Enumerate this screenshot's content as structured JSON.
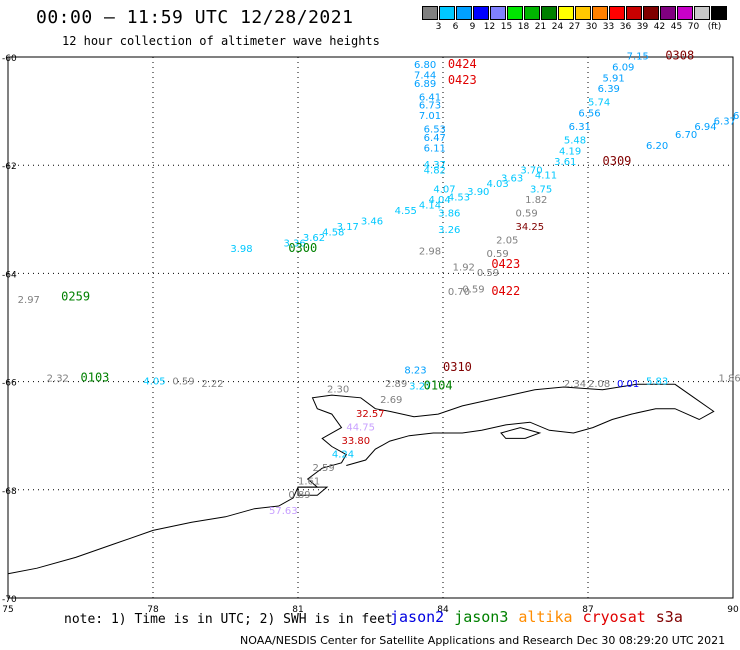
{
  "header": {
    "title": "00:00 – 11:59 UTC 12/28/2021",
    "subtitle": "12 hour collection of altimeter wave heights"
  },
  "colorbar": {
    "colors": [
      "#808080",
      "#00c8ff",
      "#00a0ff",
      "#0000ff",
      "#8080ff",
      "#00e600",
      "#00b400",
      "#008000",
      "#ffff00",
      "#ffc800",
      "#ff8000",
      "#ff0000",
      "#c80000",
      "#800000",
      "#800080",
      "#c800c8",
      "#c8c8c8",
      "#000000"
    ],
    "labels": [
      "3",
      "6",
      "9",
      "12",
      "15",
      "18",
      "21",
      "24",
      "27",
      "30",
      "33",
      "36",
      "39",
      "42",
      "45",
      "70",
      "(ft)"
    ]
  },
  "axes": {
    "lat_labels": [
      "-60",
      "-62",
      "-64",
      "-66",
      "-68",
      "-70"
    ],
    "lon_labels": [
      "75",
      "78",
      "81",
      "84",
      "87",
      "90"
    ]
  },
  "passes": [
    {
      "text": "0424",
      "lon": 84.1,
      "lat": -60.2,
      "color": "#e00000"
    },
    {
      "text": "0423",
      "lon": 84.1,
      "lat": -60.5,
      "color": "#e00000"
    },
    {
      "text": "0308",
      "lon": 88.6,
      "lat": -60.05,
      "color": "#800000"
    },
    {
      "text": "0300",
      "lon": 80.8,
      "lat": -63.6,
      "color": "#008000"
    },
    {
      "text": "0259",
      "lon": 76.1,
      "lat": -64.5,
      "color": "#008000"
    },
    {
      "text": "0309",
      "lon": 87.3,
      "lat": -62.0,
      "color": "#800000"
    },
    {
      "text": "0423",
      "lon": 85.0,
      "lat": -63.9,
      "color": "#e00000"
    },
    {
      "text": "0422",
      "lon": 85.0,
      "lat": -64.4,
      "color": "#e00000"
    },
    {
      "text": "0310",
      "lon": 84.0,
      "lat": -65.8,
      "color": "#800000"
    },
    {
      "text": "0103",
      "lon": 76.5,
      "lat": -66.0,
      "color": "#008000"
    },
    {
      "text": "0104",
      "lon": 83.6,
      "lat": -66.15,
      "color": "#008000"
    }
  ],
  "values": [
    {
      "text": "6.80",
      "lon": 83.4,
      "lat": -60.2,
      "color": "#00a0ff"
    },
    {
      "text": "7.44",
      "lon": 83.4,
      "lat": -60.4,
      "color": "#00a0ff"
    },
    {
      "text": "6.89",
      "lon": 83.4,
      "lat": -60.55,
      "color": "#00a0ff"
    },
    {
      "text": "6.41",
      "lon": 83.5,
      "lat": -60.8,
      "color": "#00a0ff"
    },
    {
      "text": "6.73",
      "lon": 83.5,
      "lat": -60.95,
      "color": "#00a0ff"
    },
    {
      "text": "7.01",
      "lon": 83.5,
      "lat": -61.15,
      "color": "#00a0ff"
    },
    {
      "text": "6.53",
      "lon": 83.6,
      "lat": -61.4,
      "color": "#00a0ff"
    },
    {
      "text": "6.47",
      "lon": 83.6,
      "lat": -61.55,
      "color": "#00a0ff"
    },
    {
      "text": "6.11",
      "lon": 83.6,
      "lat": -61.75,
      "color": "#00a0ff"
    },
    {
      "text": "4.37",
      "lon": 83.6,
      "lat": -62.05,
      "color": "#00c8ff"
    },
    {
      "text": "4.82",
      "lon": 83.6,
      "lat": -62.15,
      "color": "#00c8ff"
    },
    {
      "text": "4.07",
      "lon": 83.8,
      "lat": -62.5,
      "color": "#00c8ff"
    },
    {
      "text": "4.04",
      "lon": 83.7,
      "lat": -62.7,
      "color": "#00c8ff"
    },
    {
      "text": "3.86",
      "lon": 83.9,
      "lat": -62.95,
      "color": "#00c8ff"
    },
    {
      "text": "3.26",
      "lon": 83.9,
      "lat": -63.25,
      "color": "#00c8ff"
    },
    {
      "text": "2.98",
      "lon": 83.5,
      "lat": -63.65,
      "color": "#808080"
    },
    {
      "text": "1.92",
      "lon": 84.2,
      "lat": -63.95,
      "color": "#808080"
    },
    {
      "text": "0.59",
      "lon": 84.7,
      "lat": -64.05,
      "color": "#808080"
    },
    {
      "text": "0.59",
      "lon": 84.4,
      "lat": -64.35,
      "color": "#808080"
    },
    {
      "text": "0.70",
      "lon": 84.1,
      "lat": -64.4,
      "color": "#808080"
    },
    {
      "text": "7.15",
      "lon": 87.8,
      "lat": -60.05,
      "color": "#00a0ff"
    },
    {
      "text": "6.09",
      "lon": 87.5,
      "lat": -60.25,
      "color": "#00a0ff"
    },
    {
      "text": "5.91",
      "lon": 87.3,
      "lat": -60.45,
      "color": "#00a0ff"
    },
    {
      "text": "6.39",
      "lon": 87.2,
      "lat": -60.65,
      "color": "#00a0ff"
    },
    {
      "text": "5.74",
      "lon": 87.0,
      "lat": -60.9,
      "color": "#00c8ff"
    },
    {
      "text": "6.56",
      "lon": 86.8,
      "lat": -61.1,
      "color": "#00a0ff"
    },
    {
      "text": "6.31",
      "lon": 86.6,
      "lat": -61.35,
      "color": "#00a0ff"
    },
    {
      "text": "5.48",
      "lon": 86.5,
      "lat": -61.6,
      "color": "#00c8ff"
    },
    {
      "text": "4.19",
      "lon": 86.4,
      "lat": -61.8,
      "color": "#00c8ff"
    },
    {
      "text": "3.61",
      "lon": 86.3,
      "lat": -62.0,
      "color": "#00c8ff"
    },
    {
      "text": "4.11",
      "lon": 85.9,
      "lat": -62.25,
      "color": "#00c8ff"
    },
    {
      "text": "3.75",
      "lon": 85.8,
      "lat": -62.5,
      "color": "#00c8ff"
    },
    {
      "text": "3.70",
      "lon": 85.6,
      "lat": -62.15,
      "color": "#00c8ff"
    },
    {
      "text": "1.82",
      "lon": 85.7,
      "lat": -62.7,
      "color": "#808080"
    },
    {
      "text": "0.59",
      "lon": 85.5,
      "lat": -62.95,
      "color": "#808080"
    },
    {
      "text": "34.25",
      "lon": 85.5,
      "lat": -63.2,
      "color": "#800000"
    },
    {
      "text": "2.05",
      "lon": 85.1,
      "lat": -63.45,
      "color": "#808080"
    },
    {
      "text": "0.59",
      "lon": 84.9,
      "lat": -63.7,
      "color": "#808080"
    },
    {
      "text": "6.20",
      "lon": 88.2,
      "lat": -61.7,
      "color": "#00a0ff"
    },
    {
      "text": "6.70",
      "lon": 88.8,
      "lat": -61.5,
      "color": "#00a0ff"
    },
    {
      "text": "6.94",
      "lon": 89.2,
      "lat": -61.35,
      "color": "#00a0ff"
    },
    {
      "text": "6.37",
      "lon": 89.6,
      "lat": -61.25,
      "color": "#00a0ff"
    },
    {
      "text": "6.17",
      "lon": 90.0,
      "lat": -61.15,
      "color": "#00a0ff"
    },
    {
      "text": "6.09",
      "lon": 90.5,
      "lat": -60.95,
      "color": "#00a0ff"
    },
    {
      "text": "3.63",
      "lon": 85.2,
      "lat": -62.3,
      "color": "#00c8ff"
    },
    {
      "text": "4.03",
      "lon": 84.9,
      "lat": -62.4,
      "color": "#00c8ff"
    },
    {
      "text": "3.90",
      "lon": 84.5,
      "lat": -62.55,
      "color": "#00c8ff"
    },
    {
      "text": "4.53",
      "lon": 84.1,
      "lat": -62.65,
      "color": "#00c8ff"
    },
    {
      "text": "4.14",
      "lon": 83.5,
      "lat": -62.8,
      "color": "#00c8ff"
    },
    {
      "text": "4.55",
      "lon": 83.0,
      "lat": -62.9,
      "color": "#00c8ff"
    },
    {
      "text": "3.46",
      "lon": 82.3,
      "lat": -63.1,
      "color": "#00c8ff"
    },
    {
      "text": "3.17",
      "lon": 81.8,
      "lat": -63.2,
      "color": "#00c8ff"
    },
    {
      "text": "4.58",
      "lon": 81.5,
      "lat": -63.3,
      "color": "#00c8ff"
    },
    {
      "text": "3.62",
      "lon": 81.1,
      "lat": -63.4,
      "color": "#00c8ff"
    },
    {
      "text": "3.36",
      "lon": 80.7,
      "lat": -63.5,
      "color": "#00c8ff"
    },
    {
      "text": "3.98",
      "lon": 79.6,
      "lat": -63.6,
      "color": "#00c8ff"
    },
    {
      "text": "2.97",
      "lon": 75.2,
      "lat": -64.55,
      "color": "#808080"
    },
    {
      "text": "8.23",
      "lon": 83.2,
      "lat": -65.85,
      "color": "#00a0ff"
    },
    {
      "text": "2.32",
      "lon": 75.8,
      "lat": -66.0,
      "color": "#808080"
    },
    {
      "text": "4.05",
      "lon": 77.8,
      "lat": -66.05,
      "color": "#00c8ff"
    },
    {
      "text": "0.59",
      "lon": 78.4,
      "lat": -66.05,
      "color": "#808080"
    },
    {
      "text": "2.22",
      "lon": 79.0,
      "lat": -66.1,
      "color": "#808080"
    },
    {
      "text": "2.30",
      "lon": 81.6,
      "lat": -66.2,
      "color": "#808080"
    },
    {
      "text": "2.89",
      "lon": 82.8,
      "lat": -66.1,
      "color": "#808080"
    },
    {
      "text": "3.27",
      "lon": 83.3,
      "lat": -66.15,
      "color": "#00c8ff"
    },
    {
      "text": "2.69",
      "lon": 82.7,
      "lat": -66.4,
      "color": "#808080"
    },
    {
      "text": "32.57",
      "lon": 82.2,
      "lat": -66.65,
      "color": "#c80000"
    },
    {
      "text": "44.75",
      "lon": 82.0,
      "lat": -66.9,
      "color": "#c8a0ff"
    },
    {
      "text": "33.80",
      "lon": 81.9,
      "lat": -67.15,
      "color": "#c80000"
    },
    {
      "text": "4.24",
      "lon": 81.7,
      "lat": -67.4,
      "color": "#00c8ff"
    },
    {
      "text": "2.59",
      "lon": 81.3,
      "lat": -67.65,
      "color": "#808080"
    },
    {
      "text": "1.61",
      "lon": 81.0,
      "lat": -67.9,
      "color": "#808080"
    },
    {
      "text": "0.89",
      "lon": 80.8,
      "lat": -68.15,
      "color": "#808080"
    },
    {
      "text": "57.63",
      "lon": 80.4,
      "lat": -68.45,
      "color": "#c8a0ff"
    },
    {
      "text": "2.34",
      "lon": 86.5,
      "lat": -66.1,
      "color": "#808080"
    },
    {
      "text": "2.08",
      "lon": 87.0,
      "lat": -66.1,
      "color": "#808080"
    },
    {
      "text": "0.01",
      "lon": 87.6,
      "lat": -66.1,
      "color": "#0000ff"
    },
    {
      "text": "5.83",
      "lon": 88.2,
      "lat": -66.05,
      "color": "#00c8ff"
    },
    {
      "text": "1.86",
      "lon": 89.7,
      "lat": -66.0,
      "color": "#808080"
    }
  ],
  "footer": {
    "note": "note: 1) Time is in UTC; 2) SWH is in feet",
    "legend": [
      {
        "name": "jason2",
        "color": "#0000e0"
      },
      {
        "name": "jason3",
        "color": "#008000"
      },
      {
        "name": "altika",
        "color": "#ff8c00"
      },
      {
        "name": "cryosat",
        "color": "#e00000"
      },
      {
        "name": "s3a",
        "color": "#800000"
      }
    ],
    "credit": "NOAA/NESDIS Center for Satellite Applications and Research   Dec 30 08:29:20 UTC 2021"
  }
}
